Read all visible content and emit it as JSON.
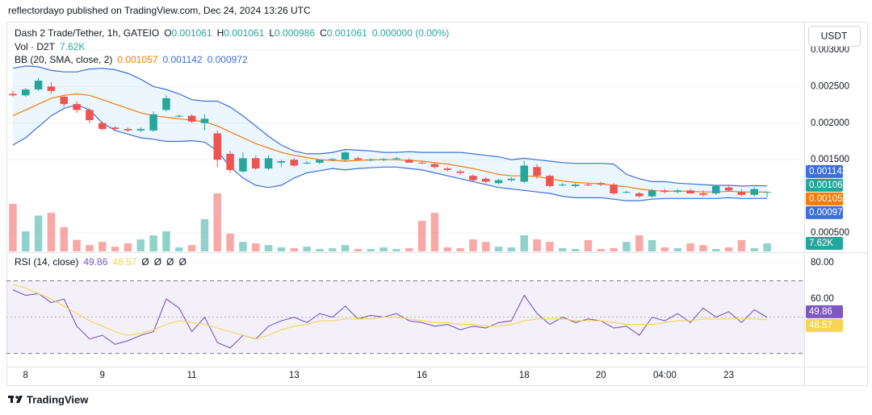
{
  "header": {
    "published": "reflectordayo published on TradingView.com, Dec 24, 2024 13:26 UTC"
  },
  "footer": {
    "brand": "TradingView"
  },
  "chart_data": [
    {
      "type": "candlestick",
      "title": "Dash 2 Trade/Tether, 1h, GATEIO",
      "currency": "USDT",
      "ohlc_labels": [
        "O",
        "H",
        "L",
        "C"
      ],
      "change": "0.000000 (0.00%)",
      "up_color": "#26a69a",
      "down_color": "#ef5350",
      "grid": true,
      "categories": [
        null,
        "8",
        null,
        null,
        null,
        null,
        null,
        "9",
        null,
        null,
        null,
        null,
        null,
        null,
        "11",
        null,
        null,
        null,
        null,
        null,
        null,
        null,
        "13",
        null,
        null,
        null,
        null,
        null,
        null,
        null,
        null,
        null,
        "16",
        null,
        null,
        null,
        null,
        null,
        null,
        null,
        "18",
        null,
        null,
        null,
        null,
        null,
        "20",
        null,
        null,
        null,
        null,
        "04:00",
        null,
        null,
        null,
        null,
        "23",
        null,
        null,
        null
      ],
      "open": [
        0.0024,
        0.00238,
        0.00246,
        0.0025,
        0.00236,
        0.00226,
        0.00218,
        0.002,
        0.00194,
        0.00192,
        0.0019,
        0.0019,
        0.00218,
        0.0021,
        0.0021,
        0.002,
        0.00186,
        0.00158,
        0.00134,
        0.00152,
        0.00138,
        0.00146,
        0.0015,
        0.00146,
        0.00146,
        0.0015,
        0.0015,
        0.00152,
        0.0015,
        0.0015,
        0.00152,
        0.0015,
        0.00146,
        0.00144,
        0.00138,
        0.00134,
        0.00128,
        0.00124,
        0.00118,
        0.00122,
        0.0012,
        0.0014,
        0.00128,
        0.00116,
        0.00114,
        0.00116,
        0.00118,
        0.00116,
        0.00106,
        0.00104,
        0.001,
        0.00108,
        0.00106,
        0.00108,
        0.00104,
        0.00104,
        0.00112,
        0.00106,
        0.00102,
        0.001061
      ],
      "high": [
        0.00244,
        0.00248,
        0.00262,
        0.00256,
        0.00238,
        0.0023,
        0.0022,
        0.00202,
        0.00196,
        0.00194,
        0.00194,
        0.00216,
        0.00238,
        0.00212,
        0.00212,
        0.00212,
        0.0019,
        0.00162,
        0.0016,
        0.00156,
        0.00156,
        0.0015,
        0.00152,
        0.00148,
        0.0015,
        0.00152,
        0.00162,
        0.00154,
        0.00152,
        0.00152,
        0.00154,
        0.00152,
        0.00148,
        0.00146,
        0.0014,
        0.00136,
        0.0013,
        0.00126,
        0.00124,
        0.00126,
        0.00148,
        0.00144,
        0.0013,
        0.00118,
        0.00118,
        0.00118,
        0.0012,
        0.00118,
        0.00108,
        0.00106,
        0.0011,
        0.0011,
        0.0011,
        0.0011,
        0.00108,
        0.00116,
        0.00114,
        0.0011,
        0.00112,
        0.001061
      ],
      "low": [
        0.00236,
        0.00236,
        0.00244,
        0.0024,
        0.00222,
        0.00214,
        0.002,
        0.0019,
        0.0019,
        0.00188,
        0.00188,
        0.00188,
        0.00216,
        0.00208,
        0.002,
        0.0019,
        0.0014,
        0.00132,
        0.00132,
        0.00136,
        0.00136,
        0.0014,
        0.0014,
        0.00144,
        0.00144,
        0.00148,
        0.00148,
        0.0015,
        0.00148,
        0.00148,
        0.0015,
        0.00146,
        0.00144,
        0.00138,
        0.00134,
        0.0013,
        0.0012,
        0.00118,
        0.00116,
        0.0012,
        0.00118,
        0.00124,
        0.00112,
        0.00114,
        0.00112,
        0.00114,
        0.00114,
        0.00102,
        0.00104,
        0.00098,
        0.00098,
        0.00104,
        0.00104,
        0.00104,
        0.001,
        0.00102,
        0.00106,
        0.001,
        0.001,
        0.000986
      ],
      "close": [
        0.00238,
        0.00246,
        0.00258,
        0.00244,
        0.00226,
        0.00218,
        0.00204,
        0.00192,
        0.00192,
        0.0019,
        0.00192,
        0.00212,
        0.00234,
        0.0021,
        0.00202,
        0.00206,
        0.0015,
        0.00136,
        0.00152,
        0.00138,
        0.00152,
        0.00148,
        0.00142,
        0.00146,
        0.0015,
        0.00151,
        0.0016,
        0.0015,
        0.0015,
        0.00151,
        0.00152,
        0.00146,
        0.00145,
        0.0014,
        0.00136,
        0.00132,
        0.00122,
        0.0012,
        0.00122,
        0.00124,
        0.00142,
        0.00128,
        0.00114,
        0.00116,
        0.00116,
        0.00115,
        0.00116,
        0.00104,
        0.00106,
        0.001,
        0.00108,
        0.00106,
        0.00108,
        0.00104,
        0.00102,
        0.00114,
        0.00108,
        0.00102,
        0.0011,
        0.001061
      ],
      "bollinger": {
        "label": "BB (20, SMA, close, 2)",
        "band_color": "#3d6fd9",
        "basis_color": "#f57c00",
        "fill_color": "rgba(33,150,243,0.09)",
        "upper": [
          0.00275,
          0.00278,
          0.00277,
          0.00272,
          0.0027,
          0.0027,
          0.00274,
          0.00275,
          0.00273,
          0.00268,
          0.0026,
          0.0025,
          0.00246,
          0.0024,
          0.00232,
          0.0023,
          0.0023,
          0.00222,
          0.0021,
          0.00196,
          0.00182,
          0.0017,
          0.00162,
          0.00158,
          0.00158,
          0.0016,
          0.00164,
          0.00163,
          0.00162,
          0.0016,
          0.0016,
          0.00161,
          0.0016,
          0.0016,
          0.0016,
          0.0016,
          0.00158,
          0.00156,
          0.00154,
          0.0015,
          0.00152,
          0.0015,
          0.00148,
          0.00146,
          0.00145,
          0.00145,
          0.00145,
          0.00144,
          0.0013,
          0.00124,
          0.0012,
          0.0012,
          0.00118,
          0.00117,
          0.00116,
          0.00115,
          0.00115,
          0.00114,
          0.001145,
          0.001142
        ],
        "basis": [
          0.0021,
          0.00218,
          0.00226,
          0.00234,
          0.00238,
          0.0024,
          0.00238,
          0.00232,
          0.00226,
          0.0022,
          0.00214,
          0.0021,
          0.00208,
          0.00206,
          0.00204,
          0.00202,
          0.00196,
          0.00188,
          0.0018,
          0.00172,
          0.00166,
          0.0016,
          0.00156,
          0.00153,
          0.0015,
          0.00149,
          0.00148,
          0.00149,
          0.0015,
          0.0015,
          0.0015,
          0.00149,
          0.00148,
          0.00146,
          0.00144,
          0.00141,
          0.00138,
          0.00134,
          0.0013,
          0.00128,
          0.00128,
          0.00127,
          0.00124,
          0.00121,
          0.00119,
          0.00118,
          0.00117,
          0.00115,
          0.00113,
          0.0011,
          0.00108,
          0.00107,
          0.00107,
          0.00107,
          0.00106,
          0.00106,
          0.00107,
          0.00106,
          0.00106,
          0.001057
        ],
        "lower": [
          0.0017,
          0.0018,
          0.00195,
          0.0021,
          0.0022,
          0.00225,
          0.00218,
          0.002,
          0.0019,
          0.00185,
          0.0018,
          0.00178,
          0.00175,
          0.00175,
          0.00176,
          0.00174,
          0.00162,
          0.0014,
          0.00125,
          0.00115,
          0.00112,
          0.00115,
          0.00125,
          0.00132,
          0.00135,
          0.00138,
          0.00136,
          0.00138,
          0.00139,
          0.0014,
          0.0014,
          0.00138,
          0.00136,
          0.00132,
          0.00128,
          0.00124,
          0.0012,
          0.00116,
          0.00112,
          0.0011,
          0.00108,
          0.00106,
          0.00104,
          0.001,
          0.00098,
          0.00098,
          0.00098,
          0.00096,
          0.00094,
          0.00094,
          0.00096,
          0.00097,
          0.00097,
          0.00097,
          0.00097,
          0.00097,
          0.00098,
          0.00097,
          0.00097,
          0.000972
        ]
      },
      "ylim": [
        0.000247,
        0.003374
      ],
      "yticks": [
        {
          "value": 0.0005,
          "label": "0.000500"
        },
        {
          "value": 0.0015,
          "label": "0.001500"
        },
        {
          "value": 0.002,
          "label": "0.002000"
        },
        {
          "value": 0.0025,
          "label": "0.002500"
        },
        {
          "value": 0.003,
          "label": "0.003000"
        }
      ]
    },
    {
      "type": "bar",
      "title": "Vol · D2T",
      "up_color": "rgba(38,166,154,0.5)",
      "down_color": "rgba(239,83,80,0.5)",
      "label_color": "#26a69a",
      "values": [
        45000,
        19000,
        34000,
        36500,
        23000,
        11000,
        6000,
        9000,
        4500,
        7600,
        11400,
        15200,
        19000,
        3800,
        6000,
        30500,
        55000,
        16800,
        9000,
        7600,
        6000,
        3800,
        3000,
        4500,
        2300,
        3000,
        6000,
        2300,
        2300,
        3800,
        2300,
        3000,
        29000,
        36500,
        3800,
        3000,
        11400,
        9000,
        4500,
        3800,
        15200,
        11400,
        9000,
        3000,
        2300,
        10700,
        2300,
        3000,
        9000,
        15200,
        10700,
        3800,
        3000,
        7600,
        6000,
        2300,
        3800,
        10700,
        3000,
        7620
      ],
      "value_labels": [
        null,
        null,
        null,
        null,
        null,
        null,
        null,
        null,
        null,
        null,
        null,
        null,
        null,
        null,
        null,
        null,
        null,
        null,
        null,
        null,
        null,
        null,
        null,
        null,
        null,
        null,
        null,
        null,
        null,
        null,
        null,
        null,
        null,
        null,
        null,
        null,
        null,
        null,
        null,
        null,
        null,
        null,
        null,
        null,
        null,
        null,
        null,
        null,
        null,
        null,
        null,
        null,
        null,
        null,
        null,
        null,
        null,
        null,
        null,
        "7.62K"
      ],
      "ylim": [
        0,
        61000
      ]
    },
    {
      "type": "line",
      "title": "RSI (14, close)",
      "extra_legend": [
        "Ø",
        "Ø",
        "Ø",
        "Ø"
      ],
      "grid": true,
      "band_fill": "rgba(126,87,194,0.09)",
      "bands": [
        70,
        30
      ],
      "midline": 50,
      "series": [
        {
          "color": "#7e57c2",
          "values": [
            65,
            62,
            63,
            58,
            60,
            45,
            38,
            40,
            35,
            37,
            40,
            42,
            60,
            55,
            42,
            50,
            36,
            33,
            40,
            38,
            45,
            48,
            50,
            47,
            52,
            50,
            56,
            49,
            51,
            50,
            52,
            48,
            47,
            45,
            46,
            43,
            45,
            44,
            47,
            48,
            62,
            52,
            46,
            50,
            47,
            49,
            48,
            44,
            45,
            40,
            50,
            48,
            52,
            47,
            55,
            50,
            53,
            47,
            54,
            49.86
          ]
        },
        {
          "color": "#f7d451",
          "values": [
            68,
            66,
            63,
            60,
            56,
            52,
            48,
            45,
            42,
            40,
            41,
            43,
            46,
            48,
            47,
            46,
            44,
            42,
            40,
            38,
            40,
            43,
            45,
            46,
            48,
            48,
            49,
            49,
            49,
            50,
            50,
            49,
            48,
            47,
            47,
            46,
            46,
            45,
            45,
            46,
            48,
            49,
            49,
            49,
            48,
            48,
            48,
            47,
            46,
            46,
            46,
            47,
            48,
            48,
            49,
            49,
            49,
            49,
            49,
            48.57
          ]
        }
      ],
      "ylim": [
        22.7,
        84.9
      ],
      "yticks": [
        {
          "value": 80,
          "label": "80.00"
        },
        {
          "value": 60,
          "label": "60.00"
        }
      ]
    }
  ]
}
